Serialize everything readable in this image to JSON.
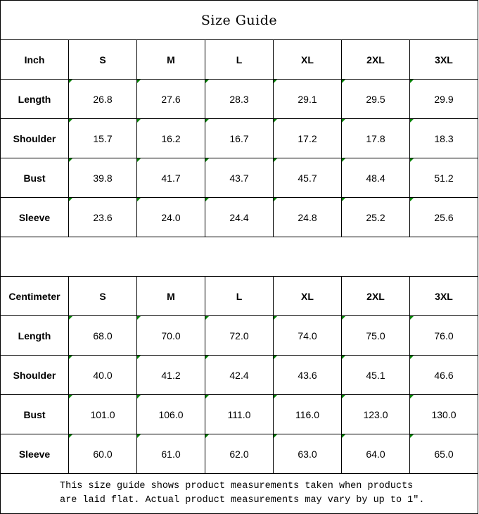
{
  "title": "Size Guide",
  "tables": [
    {
      "unit": "Inch",
      "sizes": [
        "S",
        "M",
        "L",
        "XL",
        "2XL",
        "3XL"
      ],
      "rows": [
        {
          "label": "Length",
          "values": [
            "26.8",
            "27.6",
            "28.3",
            "29.1",
            "29.5",
            "29.9"
          ]
        },
        {
          "label": "Shoulder",
          "values": [
            "15.7",
            "16.2",
            "16.7",
            "17.2",
            "17.8",
            "18.3"
          ]
        },
        {
          "label": "Bust",
          "values": [
            "39.8",
            "41.7",
            "43.7",
            "45.7",
            "48.4",
            "51.2"
          ]
        },
        {
          "label": "Sleeve",
          "values": [
            "23.6",
            "24.0",
            "24.4",
            "24.8",
            "25.2",
            "25.6"
          ]
        }
      ]
    },
    {
      "unit": "Centimeter",
      "sizes": [
        "S",
        "M",
        "L",
        "XL",
        "2XL",
        "3XL"
      ],
      "rows": [
        {
          "label": "Length",
          "values": [
            "68.0",
            "70.0",
            "72.0",
            "74.0",
            "75.0",
            "76.0"
          ]
        },
        {
          "label": "Shoulder",
          "values": [
            "40.0",
            "41.2",
            "42.4",
            "43.6",
            "45.1",
            "46.6"
          ]
        },
        {
          "label": "Bust",
          "values": [
            "101.0",
            "106.0",
            "111.0",
            "116.0",
            "123.0",
            "130.0"
          ]
        },
        {
          "label": "Sleeve",
          "values": [
            "60.0",
            "61.0",
            "62.0",
            "63.0",
            "64.0",
            "65.0"
          ]
        }
      ]
    }
  ],
  "footer": {
    "line1": "This size guide shows product measurements taken when products",
    "line2": "are laid flat. Actual product measurements may vary by up to 1″."
  },
  "colors": {
    "error_indicator": "#008000",
    "border": "#000000"
  }
}
